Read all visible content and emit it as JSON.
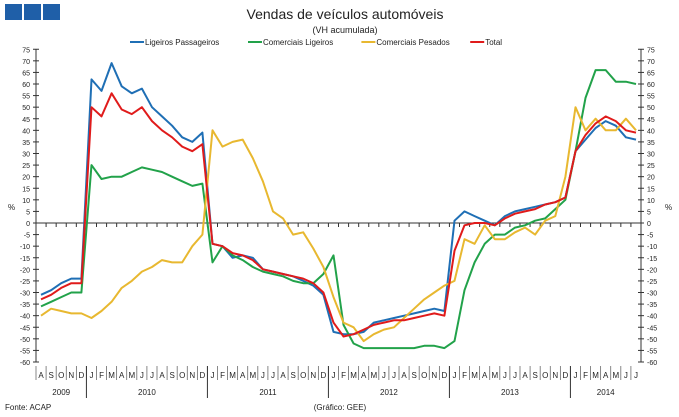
{
  "logo": {
    "color": "#1f5fa8"
  },
  "chart_data": {
    "type": "line",
    "title": "Vendas de veículos automóveis",
    "subtitle": "(VH acumulada)",
    "ylabel": "%",
    "ylim": [
      -60,
      75
    ],
    "ytick_step": 5,
    "months": [
      "A",
      "S",
      "O",
      "N",
      "D",
      "J",
      "F",
      "M",
      "A",
      "M",
      "J",
      "J",
      "A",
      "S",
      "O",
      "N",
      "D",
      "J",
      "F",
      "M",
      "A",
      "M",
      "J",
      "J",
      "A",
      "S",
      "O",
      "N",
      "D",
      "J",
      "F",
      "M",
      "A",
      "M",
      "J",
      "J",
      "A",
      "S",
      "O",
      "N",
      "D",
      "J",
      "F",
      "M",
      "A",
      "M",
      "J",
      "J",
      "A",
      "S",
      "O",
      "N",
      "D",
      "J",
      "F",
      "M",
      "A",
      "M",
      "J",
      "J"
    ],
    "years": [
      {
        "label": "2009",
        "count": 5
      },
      {
        "label": "2010",
        "count": 12
      },
      {
        "label": "2011",
        "count": 12
      },
      {
        "label": "2012",
        "count": 12
      },
      {
        "label": "2013",
        "count": 12
      },
      {
        "label": "2014",
        "count": 7
      }
    ],
    "legend_position": "top-center",
    "series": [
      {
        "name": "Ligeiros Passageiros",
        "color": "#1f6fb5",
        "values": [
          -31,
          -29,
          -26,
          -24,
          -24,
          62,
          57,
          69,
          59,
          56,
          58,
          50,
          46,
          42,
          37,
          35,
          39,
          -9,
          -10,
          -15,
          -14,
          -15,
          -20,
          -21,
          -22,
          -23,
          -25,
          -27,
          -31,
          -47,
          -48,
          -48,
          -47,
          -43,
          -42,
          -41,
          -40,
          -39,
          -38,
          -37,
          -38,
          1,
          5,
          3,
          1,
          -1,
          3,
          5,
          6,
          7,
          8,
          9,
          11,
          31,
          36,
          41,
          44,
          42,
          37,
          36
        ]
      },
      {
        "name": "Comerciais Ligeiros",
        "color": "#22a24a",
        "values": [
          -36,
          -34,
          -32,
          -30,
          -30,
          25,
          19,
          20,
          20,
          22,
          24,
          23,
          22,
          20,
          18,
          16,
          17,
          -17,
          -10,
          -14,
          -16,
          -19,
          -21,
          -22,
          -23,
          -25,
          -26,
          -26,
          -22,
          -14,
          -44,
          -52,
          -54,
          -54,
          -54,
          -54,
          -54,
          -54,
          -53,
          -53,
          -54,
          -51,
          -29,
          -17,
          -9,
          -5,
          -5,
          -2,
          -1,
          1,
          2,
          6,
          10,
          31,
          54,
          66,
          66,
          61,
          61,
          60
        ]
      },
      {
        "name": "Comerciais Pesados",
        "color": "#e8b830",
        "values": [
          -40,
          -37,
          -38,
          -39,
          -39,
          -41,
          -38,
          -34,
          -28,
          -25,
          -21,
          -19,
          -16,
          -17,
          -17,
          -10,
          -5,
          40,
          33,
          35,
          36,
          28,
          18,
          5,
          2,
          -5,
          -4,
          -11,
          -19,
          -32,
          -43,
          -45,
          -51,
          -48,
          -46,
          -45,
          -41,
          -37,
          -33,
          -30,
          -27,
          -25,
          -7,
          -9,
          -1,
          -7,
          -7,
          -4,
          -2,
          -5,
          1,
          3,
          20,
          50,
          40,
          45,
          40,
          40,
          45,
          40
        ]
      },
      {
        "name": "Total",
        "color": "#e01b1b",
        "values": [
          -33,
          -31,
          -28,
          -26,
          -26,
          50,
          46,
          56,
          49,
          47,
          50,
          44,
          40,
          37,
          33,
          31,
          34,
          -9,
          -10,
          -13,
          -14,
          -16,
          -20,
          -21,
          -22,
          -23,
          -24,
          -26,
          -30,
          -43,
          -49,
          -48,
          -46,
          -44,
          -43,
          -42,
          -42,
          -41,
          -40,
          -39,
          -40,
          -12,
          -1,
          0,
          0,
          -1,
          2,
          4,
          5,
          6,
          8,
          9,
          11,
          31,
          38,
          43,
          46,
          44,
          40,
          39
        ]
      }
    ]
  },
  "footer": {
    "source": "Fonte: ACAP",
    "credit": "(Gráfico: GEE)"
  }
}
